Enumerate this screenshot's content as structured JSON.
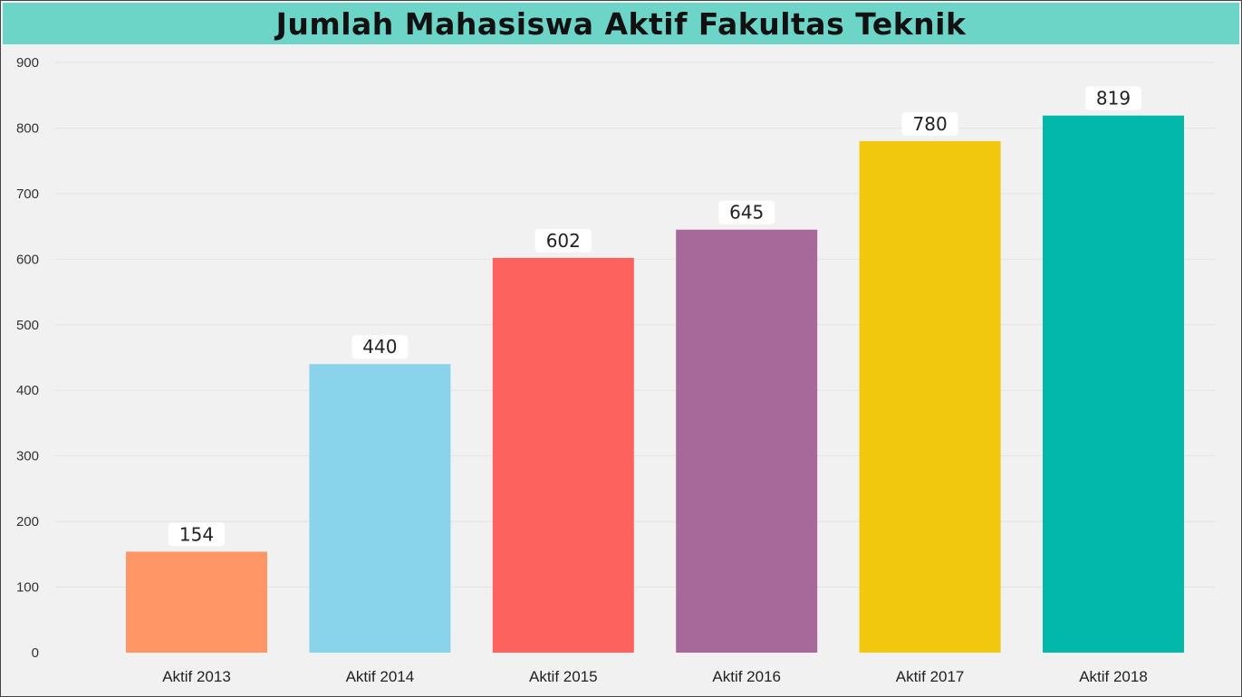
{
  "chart_data": {
    "type": "bar",
    "title": "Jumlah Mahasiswa Aktif Fakultas Teknik",
    "categories": [
      "Aktif 2013",
      "Aktif 2014",
      "Aktif 2015",
      "Aktif 2016",
      "Aktif 2017",
      "Aktif 2018"
    ],
    "values": [
      154,
      440,
      602,
      645,
      780,
      819
    ],
    "colors": [
      "#fe9666",
      "#8ad4eb",
      "#fd625e",
      "#a66999",
      "#f2c80f",
      "#01b8aa"
    ],
    "title_bar_color": "#6dd5c8",
    "ylim": [
      0,
      900
    ],
    "yticks": [
      0,
      100,
      200,
      300,
      400,
      500,
      600,
      700,
      800,
      900
    ],
    "grid": true,
    "data_labels": true,
    "legend": "none"
  }
}
